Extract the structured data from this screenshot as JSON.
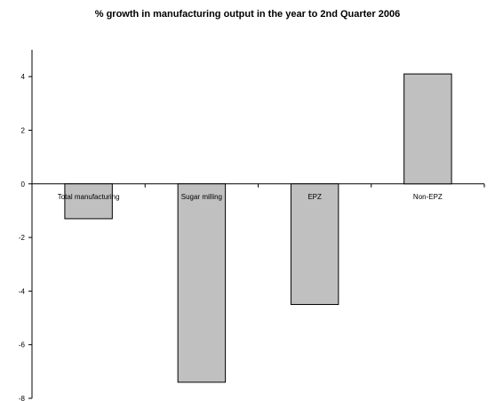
{
  "chart_data": {
    "type": "bar",
    "title": "% growth in manufacturing output in the year to 2nd Quarter 2006",
    "categories": [
      "Total manufacturing",
      "Sugar milling",
      "EPZ",
      "Non-EPZ"
    ],
    "values": [
      -1.3,
      -7.4,
      -4.5,
      4.1
    ],
    "ylim": [
      -8,
      5
    ],
    "yticks": [
      -8,
      -6,
      -4,
      -2,
      0,
      2,
      4
    ],
    "xlabel": "",
    "ylabel": "",
    "grid": false,
    "legend": "none",
    "bar_color": "#c0c0c0",
    "bar_edge_color": "#000000"
  }
}
